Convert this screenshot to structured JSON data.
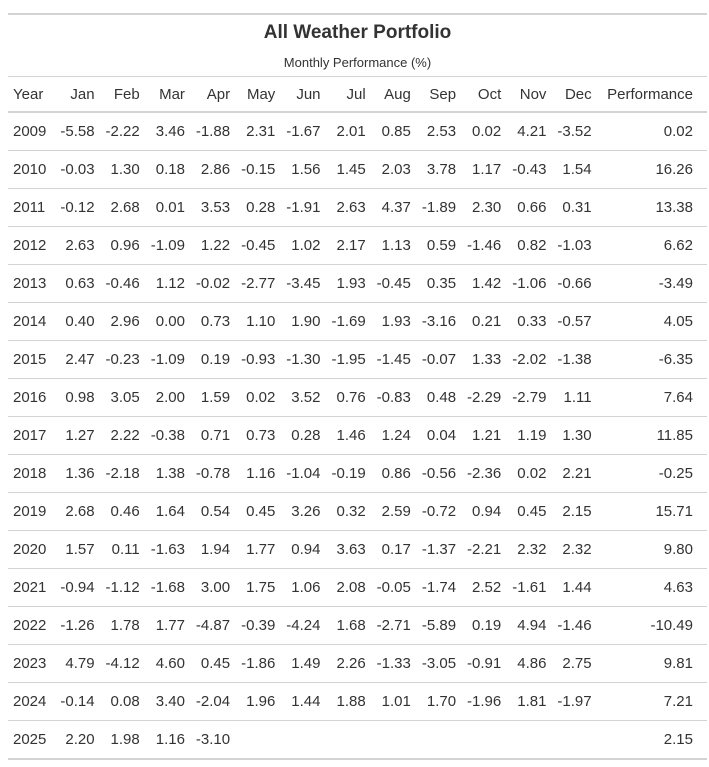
{
  "title": "All Weather Portfolio",
  "subtitle": "Monthly Performance (%)",
  "columns": [
    "Year",
    "Jan",
    "Feb",
    "Mar",
    "Apr",
    "May",
    "Jun",
    "Jul",
    "Aug",
    "Sep",
    "Oct",
    "Nov",
    "Dec",
    "Performance"
  ],
  "rows": [
    [
      "2009",
      "-5.58",
      "-2.22",
      "3.46",
      "-1.88",
      "2.31",
      "-1.67",
      "2.01",
      "0.85",
      "2.53",
      "0.02",
      "4.21",
      "-3.52",
      "0.02"
    ],
    [
      "2010",
      "-0.03",
      "1.30",
      "0.18",
      "2.86",
      "-0.15",
      "1.56",
      "1.45",
      "2.03",
      "3.78",
      "1.17",
      "-0.43",
      "1.54",
      "16.26"
    ],
    [
      "2011",
      "-0.12",
      "2.68",
      "0.01",
      "3.53",
      "0.28",
      "-1.91",
      "2.63",
      "4.37",
      "-1.89",
      "2.30",
      "0.66",
      "0.31",
      "13.38"
    ],
    [
      "2012",
      "2.63",
      "0.96",
      "-1.09",
      "1.22",
      "-0.45",
      "1.02",
      "2.17",
      "1.13",
      "0.59",
      "-1.46",
      "0.82",
      "-1.03",
      "6.62"
    ],
    [
      "2013",
      "0.63",
      "-0.46",
      "1.12",
      "-0.02",
      "-2.77",
      "-3.45",
      "1.93",
      "-0.45",
      "0.35",
      "1.42",
      "-1.06",
      "-0.66",
      "-3.49"
    ],
    [
      "2014",
      "0.40",
      "2.96",
      "0.00",
      "0.73",
      "1.10",
      "1.90",
      "-1.69",
      "1.93",
      "-3.16",
      "0.21",
      "0.33",
      "-0.57",
      "4.05"
    ],
    [
      "2015",
      "2.47",
      "-0.23",
      "-1.09",
      "0.19",
      "-0.93",
      "-1.30",
      "-1.95",
      "-1.45",
      "-0.07",
      "1.33",
      "-2.02",
      "-1.38",
      "-6.35"
    ],
    [
      "2016",
      "0.98",
      "3.05",
      "2.00",
      "1.59",
      "0.02",
      "3.52",
      "0.76",
      "-0.83",
      "0.48",
      "-2.29",
      "-2.79",
      "1.11",
      "7.64"
    ],
    [
      "2017",
      "1.27",
      "2.22",
      "-0.38",
      "0.71",
      "0.73",
      "0.28",
      "1.46",
      "1.24",
      "0.04",
      "1.21",
      "1.19",
      "1.30",
      "11.85"
    ],
    [
      "2018",
      "1.36",
      "-2.18",
      "1.38",
      "-0.78",
      "1.16",
      "-1.04",
      "-0.19",
      "0.86",
      "-0.56",
      "-2.36",
      "0.02",
      "2.21",
      "-0.25"
    ],
    [
      "2019",
      "2.68",
      "0.46",
      "1.64",
      "0.54",
      "0.45",
      "3.26",
      "0.32",
      "2.59",
      "-0.72",
      "0.94",
      "0.45",
      "2.15",
      "15.71"
    ],
    [
      "2020",
      "1.57",
      "0.11",
      "-1.63",
      "1.94",
      "1.77",
      "0.94",
      "3.63",
      "0.17",
      "-1.37",
      "-2.21",
      "2.32",
      "2.32",
      "9.80"
    ],
    [
      "2021",
      "-0.94",
      "-1.12",
      "-1.68",
      "3.00",
      "1.75",
      "1.06",
      "2.08",
      "-0.05",
      "-1.74",
      "2.52",
      "-1.61",
      "1.44",
      "4.63"
    ],
    [
      "2022",
      "-1.26",
      "1.78",
      "1.77",
      "-4.87",
      "-0.39",
      "-4.24",
      "1.68",
      "-2.71",
      "-5.89",
      "0.19",
      "4.94",
      "-1.46",
      "-10.49"
    ],
    [
      "2023",
      "4.79",
      "-4.12",
      "4.60",
      "0.45",
      "-1.86",
      "1.49",
      "2.26",
      "-1.33",
      "-3.05",
      "-0.91",
      "4.86",
      "2.75",
      "9.81"
    ],
    [
      "2024",
      "-0.14",
      "0.08",
      "3.40",
      "-2.04",
      "1.96",
      "1.44",
      "1.88",
      "1.01",
      "1.70",
      "-1.96",
      "1.81",
      "-1.97",
      "7.21"
    ],
    [
      "2025",
      "2.20",
      "1.98",
      "1.16",
      "-3.10",
      "",
      "",
      "",
      "",
      "",
      "",
      "",
      "",
      "2.15"
    ]
  ],
  "colors": {
    "text": "#333333",
    "rule": "#d3d3d3",
    "background": "#ffffff"
  }
}
